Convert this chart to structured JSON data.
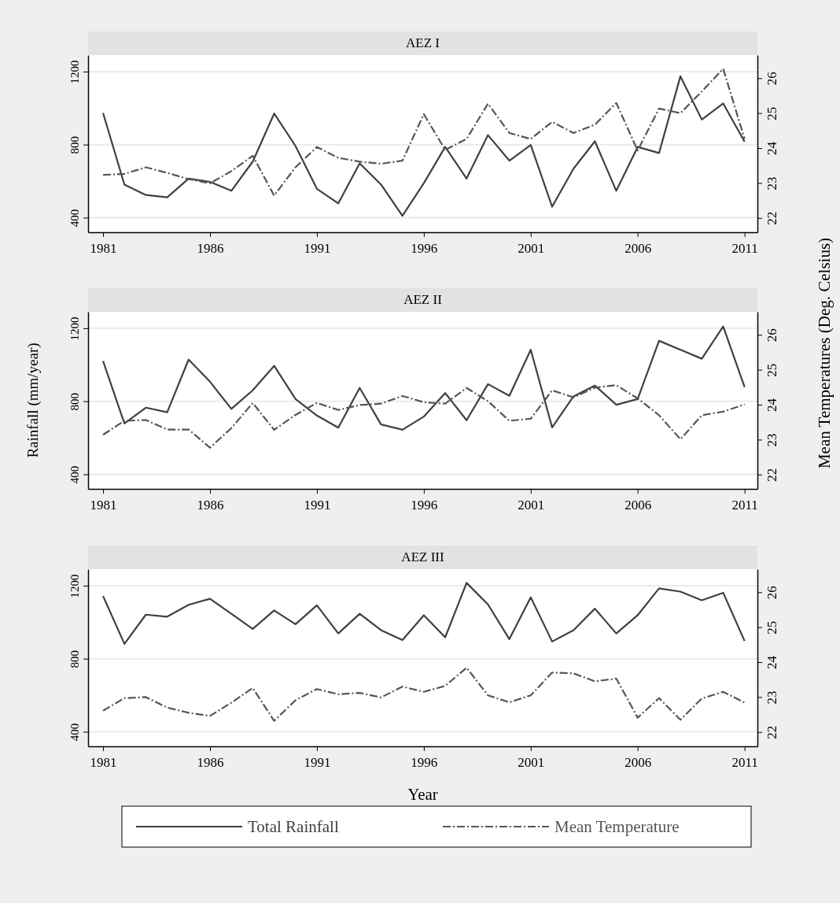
{
  "chart_data": [
    {
      "type": "line",
      "title": "AEZ I",
      "x": [
        1981,
        1982,
        1983,
        1984,
        1985,
        1986,
        1987,
        1988,
        1989,
        1990,
        1991,
        1992,
        1993,
        1994,
        1995,
        1996,
        1997,
        1998,
        1999,
        2000,
        2001,
        2002,
        2003,
        2004,
        2005,
        2006,
        2007,
        2008,
        2009,
        2010,
        2011
      ],
      "xlim": [
        1980.3,
        2011.6
      ],
      "xticks": [
        1981,
        1986,
        1991,
        1996,
        2001,
        2006,
        2011
      ],
      "ylim": [
        320,
        1290
      ],
      "yticks": [
        400,
        800,
        1200
      ],
      "y2lim": [
        21.59,
        26.66
      ],
      "y2ticks": [
        22,
        23,
        24,
        25,
        26
      ],
      "grid": "y",
      "series": [
        {
          "color": "#404040",
          "line_style": "solid",
          "values": [
            973,
            581,
            524,
            511,
            614,
            596,
            547,
            707,
            970,
            792,
            558,
            478,
            697,
            581,
            410,
            589,
            787,
            614,
            852,
            712,
            798,
            460,
            668,
            818,
            547,
            787,
            754,
            1174,
            937,
            1025,
            816
          ]
        },
        {
          "color": "#555555",
          "line_style": "dashdot",
          "axis": "y2",
          "values": [
            23.23,
            23.26,
            23.45,
            23.29,
            23.11,
            22.99,
            23.34,
            23.78,
            22.64,
            23.45,
            24.03,
            23.72,
            23.61,
            23.55,
            23.64,
            24.97,
            23.95,
            24.26,
            25.27,
            24.43,
            24.26,
            24.75,
            24.43,
            24.67,
            25.29,
            23.93,
            25.13,
            25.0,
            25.62,
            26.27,
            24.26
          ]
        }
      ]
    },
    {
      "type": "line",
      "title": "AEZ II",
      "ylabel": "Rainfall (mm/year)",
      "y2label": "Mean Temperatures (Deg. Celsius)",
      "x": [
        1981,
        1982,
        1983,
        1984,
        1985,
        1986,
        1987,
        1988,
        1989,
        1990,
        1991,
        1992,
        1993,
        1994,
        1995,
        1996,
        1997,
        1998,
        1999,
        2000,
        2001,
        2002,
        2003,
        2004,
        2005,
        2006,
        2007,
        2008,
        2009,
        2010,
        2011
      ],
      "xlim": [
        1980.3,
        2011.6
      ],
      "xticks": [
        1981,
        1986,
        1991,
        1996,
        2001,
        2006,
        2011
      ],
      "ylim": [
        320,
        1290
      ],
      "yticks": [
        400,
        800,
        1200
      ],
      "y2lim": [
        21.59,
        26.66
      ],
      "y2ticks": [
        22,
        23,
        24,
        25,
        26
      ],
      "grid": "y",
      "series": [
        {
          "color": "#404040",
          "line_style": "solid",
          "values": [
            1020,
            678,
            765,
            740,
            1028,
            907,
            758,
            860,
            994,
            812,
            722,
            655,
            873,
            673,
            644,
            716,
            845,
            696,
            894,
            830,
            1082,
            657,
            827,
            886,
            781,
            812,
            1131,
            1082,
            1033,
            1210,
            878
          ]
        },
        {
          "color": "#555555",
          "line_style": "dashdot",
          "axis": "y2",
          "values": [
            23.14,
            23.54,
            23.56,
            23.29,
            23.29,
            22.77,
            23.33,
            24.05,
            23.28,
            23.71,
            24.05,
            23.85,
            23.99,
            24.03,
            24.25,
            24.07,
            24.03,
            24.48,
            24.1,
            23.54,
            23.6,
            24.41,
            24.21,
            24.49,
            24.56,
            24.18,
            23.7,
            23.01,
            23.7,
            23.8,
            24.01
          ]
        }
      ]
    },
    {
      "type": "line",
      "title": "AEZ III",
      "xlabel": "Year",
      "legend": "bottom",
      "x": [
        1981,
        1982,
        1983,
        1984,
        1985,
        1986,
        1987,
        1988,
        1989,
        1990,
        1991,
        1992,
        1993,
        1994,
        1995,
        1996,
        1997,
        1998,
        1999,
        2000,
        2001,
        2002,
        2003,
        2004,
        2005,
        2006,
        2007,
        2008,
        2009,
        2010,
        2011
      ],
      "xlim": [
        1980.3,
        2011.6
      ],
      "xticks": [
        1981,
        1986,
        1991,
        1996,
        2001,
        2006,
        2011
      ],
      "ylim": [
        320,
        1290
      ],
      "yticks": [
        400,
        800,
        1200
      ],
      "y2lim": [
        21.59,
        26.66
      ],
      "y2ticks": [
        22,
        23,
        24,
        25,
        26
      ],
      "grid": "y",
      "series": [
        {
          "name": "Total Rainfall",
          "color": "#404040",
          "line_style": "solid",
          "values": [
            1143,
            881,
            1041,
            1030,
            1095,
            1128,
            1046,
            963,
            1064,
            989,
            1092,
            938,
            1046,
            956,
            902,
            1038,
            917,
            1215,
            1097,
            907,
            1136,
            894,
            956,
            1074,
            938,
            1038,
            1185,
            1167,
            1120,
            1161,
            897
          ]
        },
        {
          "name": "Mean Temperature",
          "color": "#555555",
          "line_style": "dashdot",
          "axis": "y2",
          "values": [
            22.61,
            22.97,
            23.0,
            22.7,
            22.55,
            22.46,
            22.84,
            23.26,
            22.32,
            22.91,
            23.23,
            23.08,
            23.12,
            22.99,
            23.3,
            23.15,
            23.32,
            23.84,
            23.05,
            22.85,
            23.05,
            23.7,
            23.68,
            23.45,
            23.53,
            22.41,
            22.97,
            22.35,
            22.96,
            23.15,
            22.84
          ]
        }
      ]
    }
  ]
}
